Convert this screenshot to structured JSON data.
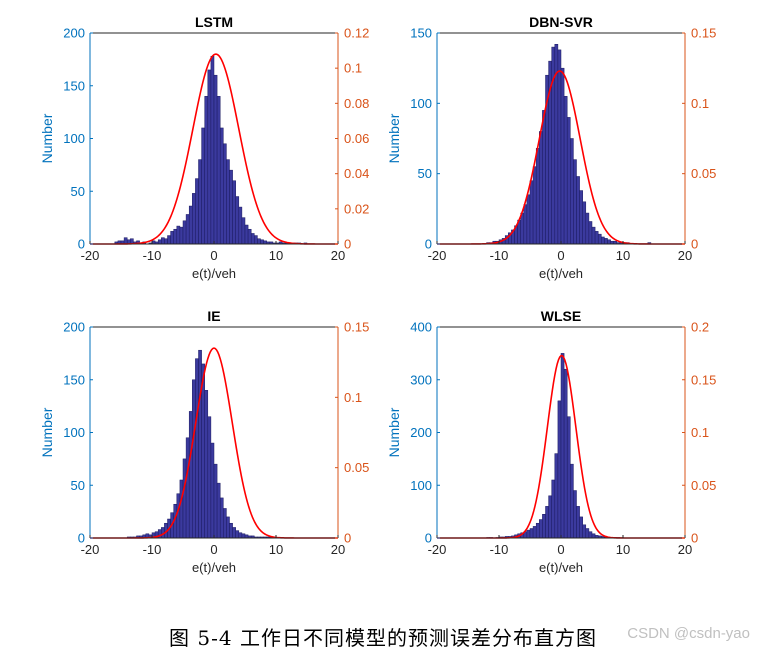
{
  "colors": {
    "left_axis": "#0072BD",
    "right_axis": "#D95319",
    "bar_fill": "#3b3a9e",
    "bar_edge": "#1b1a60",
    "fit_curve": "#ff0000"
  },
  "caption": "图 5-4 工作日不同模型的预测误差分布直方图",
  "watermark": "CSDN @csdn-yao",
  "chart_data": [
    {
      "type": "bar",
      "title": "LSTM",
      "xlabel": "e(t)/veh",
      "ylabel": "Number",
      "xlim": [
        -20,
        20
      ],
      "xticks": [
        -20,
        -10,
        0,
        10,
        20
      ],
      "ylim": [
        0,
        200
      ],
      "yticks": [
        0,
        50,
        100,
        150,
        200
      ],
      "y2lim": [
        0,
        0.12
      ],
      "y2ticks": [
        "0",
        "0.02",
        "0.04",
        "0.06",
        "0.08",
        "0.1",
        "0.12"
      ],
      "bin_start": -16,
      "bin_width": 0.5,
      "values": [
        2,
        3,
        3,
        6,
        4,
        5,
        2,
        3,
        1,
        2,
        0,
        1,
        3,
        2,
        4,
        6,
        5,
        8,
        12,
        14,
        17,
        16,
        22,
        28,
        36,
        48,
        62,
        80,
        110,
        140,
        165,
        178,
        160,
        140,
        110,
        95,
        80,
        70,
        60,
        45,
        35,
        25,
        18,
        14,
        10,
        8,
        5,
        4,
        3,
        2,
        2,
        1,
        1,
        2,
        1,
        1,
        0,
        1,
        1,
        1,
        0,
        1
      ],
      "fit": {
        "mean": 0.3,
        "std": 3.7,
        "peak": 0.108
      }
    },
    {
      "type": "bar",
      "title": "DBN-SVR",
      "xlabel": "e(t)/veh",
      "ylabel": "Number",
      "xlim": [
        -20,
        20
      ],
      "xticks": [
        -20,
        -10,
        0,
        10,
        20
      ],
      "ylim": [
        0,
        150
      ],
      "yticks": [
        0,
        50,
        100,
        150
      ],
      "y2lim": [
        0,
        0.15
      ],
      "y2ticks": [
        "0",
        "0.05",
        "0.1",
        "0.15"
      ],
      "bin_start": -12,
      "bin_width": 0.5,
      "values": [
        1,
        1,
        2,
        2,
        3,
        4,
        6,
        8,
        10,
        13,
        17,
        22,
        28,
        35,
        45,
        55,
        68,
        80,
        95,
        120,
        130,
        140,
        142,
        138,
        125,
        105,
        90,
        75,
        60,
        48,
        38,
        30,
        22,
        16,
        12,
        9,
        7,
        5,
        4,
        3,
        2,
        2,
        1,
        1,
        1,
        1,
        0,
        0,
        0,
        0,
        0,
        0,
        1
      ],
      "fit": {
        "mean": -0.2,
        "std": 3.3,
        "peak": 0.123
      }
    },
    {
      "type": "bar",
      "title": "IE",
      "xlabel": "e(t)/veh",
      "ylabel": "Number",
      "xlim": [
        -20,
        20
      ],
      "xticks": [
        -20,
        -10,
        0,
        10,
        20
      ],
      "ylim": [
        0,
        200
      ],
      "yticks": [
        0,
        50,
        100,
        150,
        200
      ],
      "y2lim": [
        0,
        0.15
      ],
      "y2ticks": [
        "0",
        "0.05",
        "0.1",
        "0.15"
      ],
      "bin_start": -14,
      "bin_width": 0.5,
      "values": [
        1,
        1,
        1,
        2,
        2,
        3,
        4,
        3,
        5,
        6,
        8,
        10,
        14,
        18,
        24,
        32,
        42,
        55,
        75,
        95,
        120,
        150,
        170,
        178,
        165,
        140,
        115,
        90,
        70,
        52,
        38,
        28,
        20,
        14,
        10,
        7,
        5,
        4,
        3,
        2,
        2,
        1,
        1,
        1,
        1,
        1,
        1
      ],
      "fit": {
        "mean": 0.0,
        "std": 2.95,
        "peak": 0.135
      }
    },
    {
      "type": "bar",
      "title": "WLSE",
      "xlabel": "e(t)/veh",
      "ylabel": "Number",
      "xlim": [
        -20,
        20
      ],
      "xticks": [
        -20,
        -10,
        0,
        10,
        20
      ],
      "ylim": [
        0,
        400
      ],
      "yticks": [
        0,
        100,
        200,
        300,
        400
      ],
      "y2lim": [
        0,
        0.2
      ],
      "y2ticks": [
        "0",
        "0.05",
        "0.1",
        "0.15",
        "0.2"
      ],
      "bin_start": -12,
      "bin_width": 0.5,
      "values": [
        1,
        1,
        0,
        1,
        2,
        2,
        3,
        3,
        4,
        6,
        8,
        10,
        12,
        15,
        18,
        22,
        28,
        35,
        45,
        60,
        80,
        110,
        160,
        260,
        350,
        320,
        230,
        140,
        90,
        60,
        40,
        25,
        18,
        12,
        8,
        5,
        4,
        3,
        2,
        1,
        1,
        1,
        1
      ],
      "fit": {
        "mean": 0.1,
        "std": 2.3,
        "peak": 0.173
      }
    }
  ]
}
